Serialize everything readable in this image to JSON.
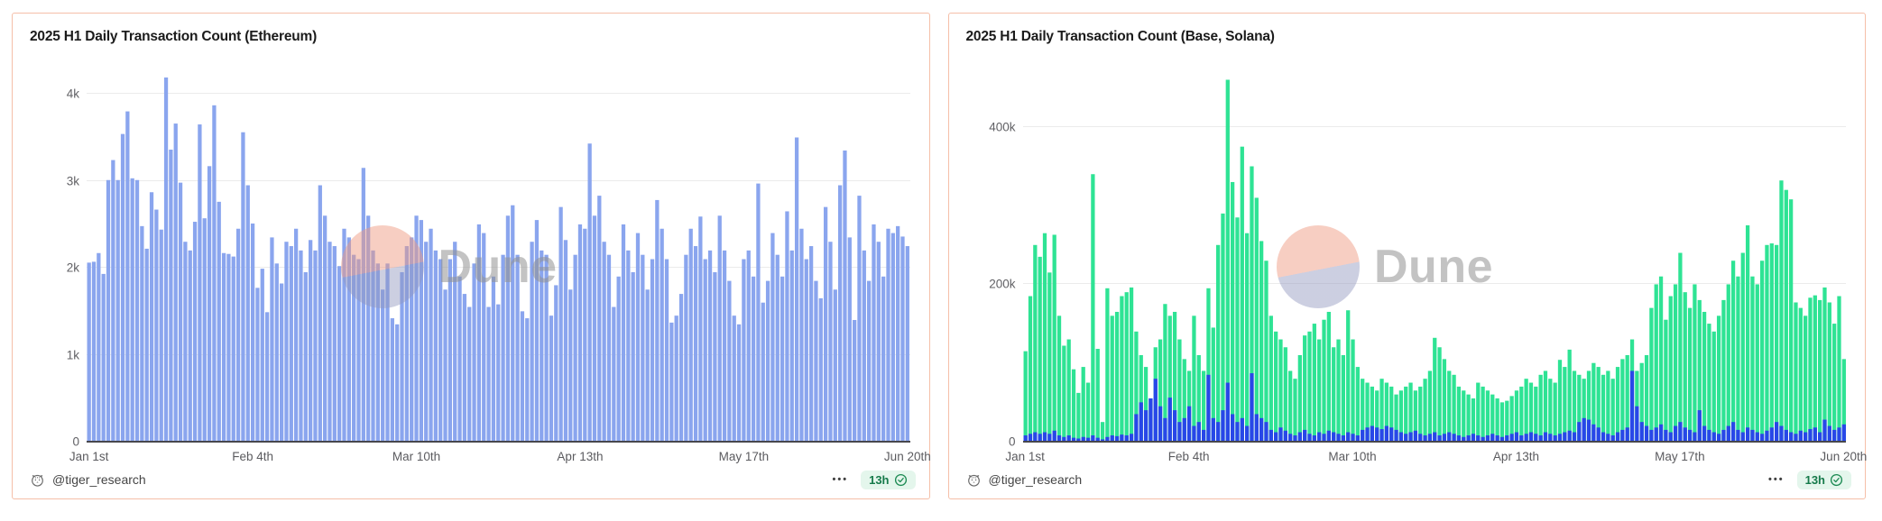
{
  "watermark_label": "Dune",
  "colors": {
    "card_border": "#f5bfa8",
    "grid_line": "#ebebeb",
    "axis_line": "#47474d",
    "title_text": "#1b1b1b",
    "axis_label_text": "#616165",
    "footer_text": "#454545",
    "badge_bg": "#e4f6ec",
    "badge_text": "#157a4a",
    "ethereum_bar": "#8aa5ee",
    "solana_bar": "#2ee394",
    "base_bar": "#2847e8",
    "watermark_pink": "#f0a795",
    "watermark_lavender": "#a9adcf"
  },
  "cards": [
    {
      "title": "2025 H1 Daily Transaction Count (Ethereum)",
      "footer": {
        "author": "@tiger_research",
        "more_label": "•••",
        "badge_label": "13h"
      }
    },
    {
      "title": "2025 H1 Daily Transaction Count (Base, Solana)",
      "footer": {
        "author": "@tiger_research",
        "more_label": "•••",
        "badge_label": "13h"
      }
    }
  ],
  "chart_data": [
    {
      "type": "bar",
      "title": "2025 H1 Daily Transaction Count (Ethereum)",
      "x_description": "daily, Jan 1 2025 – Jun 20 2025 (171 days)",
      "num_points": 171,
      "x_tick_labels": [
        "Jan 1st",
        "Feb 4th",
        "Mar 10th",
        "Apr 13th",
        "May 17th",
        "Jun 20th"
      ],
      "x_tick_days": [
        0,
        34,
        68,
        102,
        136,
        170
      ],
      "y_tick_labels": [
        "0",
        "1k",
        "2k",
        "3k",
        "4k"
      ],
      "y_ticks": [
        0,
        1000,
        2000,
        3000,
        4000
      ],
      "ylim": [
        0,
        4200
      ],
      "grid": true,
      "legend": null,
      "series": [
        {
          "name": "Ethereum",
          "color": "#8aa5ee",
          "values": [
            2060,
            2070,
            2170,
            1930,
            3010,
            3240,
            3010,
            3540,
            3800,
            3030,
            3010,
            2480,
            2220,
            2870,
            2670,
            2440,
            4190,
            3360,
            3660,
            2980,
            2300,
            2200,
            2530,
            3650,
            2570,
            3170,
            3870,
            2760,
            2170,
            2160,
            2130,
            2450,
            3560,
            2950,
            2510,
            1770,
            1990,
            1490,
            2350,
            2050,
            1820,
            2300,
            2250,
            2450,
            2200,
            1950,
            2320,
            2200,
            2950,
            2600,
            2300,
            2250,
            2020,
            2450,
            2350,
            2150,
            2100,
            3150,
            2600,
            2200,
            2050,
            1750,
            2050,
            1420,
            1350,
            1950,
            2250,
            2350,
            2600,
            2550,
            2300,
            2450,
            2200,
            2100,
            1750,
            2100,
            2300,
            1900,
            1700,
            1550,
            2050,
            2500,
            2400,
            1550,
            1900,
            1580,
            2150,
            2600,
            2720,
            2150,
            1500,
            1420,
            2300,
            2550,
            2200,
            2150,
            1450,
            1800,
            2700,
            2320,
            1750,
            2150,
            2500,
            2450,
            3430,
            2600,
            2830,
            2300,
            2150,
            1550,
            1900,
            2500,
            2200,
            1950,
            2400,
            2150,
            1750,
            2100,
            2780,
            2450,
            2100,
            1370,
            1450,
            1700,
            2150,
            2450,
            2250,
            2590,
            2100,
            2200,
            1950,
            2600,
            2200,
            1850,
            1450,
            1350,
            2100,
            2200,
            1900,
            2970,
            1600,
            1850,
            2400,
            2150,
            1900,
            2650,
            2200,
            3500,
            2450,
            2100,
            2250,
            1850,
            1650,
            2700,
            2300,
            1750,
            2950,
            3350,
            2350,
            1400,
            2830,
            2200,
            1850,
            2500,
            2300,
            1900,
            2450,
            2400,
            2480,
            2360,
            2250
          ]
        }
      ]
    },
    {
      "type": "bar",
      "title": "2025 H1 Daily Transaction Count (Base, Solana)",
      "x_description": "daily, Jan 1 2025 – Jun 20 2025 (171 days)",
      "num_points": 171,
      "x_tick_labels": [
        "Jan 1st",
        "Feb 4th",
        "Mar 10th",
        "Apr 13th",
        "May 17th",
        "Jun 20th"
      ],
      "x_tick_days": [
        0,
        34,
        68,
        102,
        136,
        170
      ],
      "y_tick_labels": [
        "0",
        "200k",
        "400k"
      ],
      "y_ticks": [
        0,
        200000,
        400000
      ],
      "ylim": [
        0,
        464000
      ],
      "grid": true,
      "legend": null,
      "series": [
        {
          "name": "Solana",
          "color": "#2ee394",
          "values": [
            115000,
            185000,
            250000,
            235000,
            265000,
            215000,
            263000,
            160000,
            122000,
            130000,
            92000,
            62000,
            95000,
            75000,
            340000,
            118000,
            25000,
            195000,
            160000,
            165000,
            185000,
            190000,
            196000,
            140000,
            110000,
            95000,
            55000,
            120000,
            130000,
            175000,
            160000,
            165000,
            130000,
            105000,
            90000,
            160000,
            110000,
            90000,
            195000,
            145000,
            250000,
            290000,
            460000,
            330000,
            285000,
            375000,
            265000,
            350000,
            310000,
            255000,
            230000,
            160000,
            140000,
            130000,
            120000,
            90000,
            80000,
            110000,
            135000,
            140000,
            150000,
            130000,
            155000,
            165000,
            120000,
            130000,
            110000,
            167000,
            130000,
            95000,
            80000,
            75000,
            70000,
            65000,
            80000,
            75000,
            70000,
            60000,
            65000,
            70000,
            75000,
            65000,
            70000,
            80000,
            90000,
            132000,
            120000,
            105000,
            90000,
            85000,
            70000,
            65000,
            60000,
            55000,
            75000,
            70000,
            65000,
            60000,
            55000,
            50000,
            52000,
            58000,
            65000,
            70000,
            80000,
            75000,
            70000,
            85000,
            90000,
            80000,
            75000,
            104000,
            95000,
            117000,
            90000,
            85000,
            80000,
            90000,
            100000,
            95000,
            85000,
            90000,
            80000,
            95000,
            105000,
            110000,
            130000,
            90000,
            100000,
            110000,
            170000,
            200000,
            210000,
            155000,
            185000,
            200000,
            240000,
            190000,
            170000,
            200000,
            180000,
            165000,
            150000,
            140000,
            160000,
            180000,
            200000,
            230000,
            210000,
            240000,
            275000,
            210000,
            200000,
            230000,
            250000,
            252000,
            250000,
            332000,
            320000,
            308000,
            177000,
            170000,
            160000,
            183000,
            186000,
            180000,
            196000,
            177000,
            150000,
            185000,
            105000
          ]
        },
        {
          "name": "Base",
          "color": "#2847e8",
          "values": [
            8000,
            10000,
            12000,
            10000,
            12000,
            10000,
            14000,
            8000,
            6000,
            8000,
            5000,
            4000,
            6000,
            5000,
            8000,
            5000,
            3000,
            6000,
            8000,
            7000,
            9000,
            8000,
            10000,
            35000,
            50000,
            40000,
            55000,
            80000,
            45000,
            30000,
            56000,
            40000,
            25000,
            30000,
            45000,
            20000,
            25000,
            15000,
            85000,
            30000,
            25000,
            40000,
            75000,
            35000,
            25000,
            30000,
            20000,
            87000,
            35000,
            30000,
            25000,
            15000,
            12000,
            18000,
            14000,
            10000,
            8000,
            12000,
            15000,
            10000,
            8000,
            12000,
            10000,
            14000,
            12000,
            10000,
            8000,
            12000,
            10000,
            8000,
            15000,
            18000,
            20000,
            18000,
            16000,
            20000,
            18000,
            15000,
            12000,
            10000,
            12000,
            14000,
            10000,
            8000,
            10000,
            12000,
            8000,
            10000,
            12000,
            10000,
            8000,
            6000,
            8000,
            10000,
            8000,
            6000,
            8000,
            10000,
            8000,
            6000,
            8000,
            10000,
            12000,
            8000,
            10000,
            12000,
            10000,
            8000,
            12000,
            10000,
            8000,
            10000,
            12000,
            14000,
            12000,
            25000,
            30000,
            28000,
            22000,
            18000,
            12000,
            10000,
            8000,
            12000,
            15000,
            18000,
            90000,
            45000,
            25000,
            20000,
            15000,
            18000,
            22000,
            15000,
            12000,
            20000,
            25000,
            18000,
            15000,
            12000,
            40000,
            20000,
            15000,
            12000,
            10000,
            15000,
            20000,
            25000,
            15000,
            12000,
            18000,
            15000,
            12000,
            10000,
            14000,
            18000,
            25000,
            20000,
            15000,
            12000,
            10000,
            14000,
            12000,
            16000,
            18000,
            12000,
            28000,
            20000,
            15000,
            18000,
            22000
          ]
        }
      ]
    }
  ]
}
